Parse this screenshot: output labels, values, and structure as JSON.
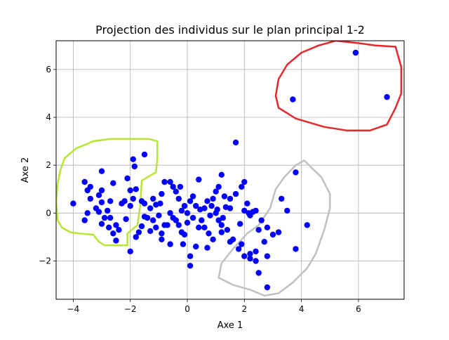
{
  "chart_data": {
    "type": "scatter",
    "title": "Projection des individus sur le plan principal 1-2",
    "xlabel": "Axe 1",
    "ylabel": "Axe 2",
    "xlim": [
      -4.6,
      7.6
    ],
    "ylim": [
      -3.6,
      7.2
    ],
    "xticks": [
      -4,
      -2,
      0,
      2,
      4,
      6
    ],
    "yticks": [
      -2,
      0,
      2,
      4,
      6
    ],
    "grid": true,
    "colors": {
      "points": "#0000ff",
      "grid": "#b0b0b0",
      "red_outline": "#e8262e",
      "green_outline": "#b5e632",
      "gray_outline": "#c0c0c0"
    },
    "series": [
      {
        "points": [
          [
            5.9,
            6.7
          ],
          [
            7.0,
            4.85
          ],
          [
            3.7,
            4.75
          ],
          [
            1.7,
            2.95
          ],
          [
            3.8,
            1.7
          ],
          [
            -1.5,
            2.45
          ],
          [
            -1.9,
            2.25
          ],
          [
            -1.85,
            1.95
          ],
          [
            -3.0,
            1.75
          ],
          [
            -2.1,
            1.45
          ],
          [
            -3.6,
            1.3
          ],
          [
            -3.4,
            1.1
          ],
          [
            -3.5,
            0.95
          ],
          [
            -3.0,
            0.95
          ],
          [
            -3.1,
            0.75
          ],
          [
            -2.6,
            1.25
          ],
          [
            -2.0,
            0.95
          ],
          [
            -1.8,
            1.0
          ],
          [
            -2.2,
            0.5
          ],
          [
            -2.3,
            0.4
          ],
          [
            -2.0,
            0.3
          ],
          [
            -2.7,
            0.5
          ],
          [
            -3.0,
            0.45
          ],
          [
            -3.4,
            0.6
          ],
          [
            -3.2,
            0.2
          ],
          [
            -4.0,
            0.4
          ],
          [
            -3.5,
            0.0
          ],
          [
            -3.6,
            -0.3
          ],
          [
            -3.1,
            0.05
          ],
          [
            -2.8,
            0.1
          ],
          [
            -2.9,
            -0.2
          ],
          [
            -3.0,
            -0.45
          ],
          [
            -2.5,
            -0.5
          ],
          [
            -2.4,
            -0.7
          ],
          [
            -2.6,
            -0.85
          ],
          [
            -2.5,
            -1.15
          ],
          [
            -2.7,
            -0.2
          ],
          [
            -1.9,
            0.6
          ],
          [
            -1.6,
            0.5
          ],
          [
            -1.5,
            0.4
          ],
          [
            -1.3,
            0.2
          ],
          [
            -1.2,
            0.6
          ],
          [
            -1.1,
            0.35
          ],
          [
            -0.9,
            0.8
          ],
          [
            -0.8,
            1.3
          ],
          [
            -0.6,
            1.3
          ],
          [
            -0.5,
            1.1
          ],
          [
            -0.4,
            0.9
          ],
          [
            -0.3,
            0.6
          ],
          [
            -0.1,
            0.3
          ],
          [
            0.2,
            0.7
          ],
          [
            0.4,
            1.4
          ],
          [
            0.7,
            0.5
          ],
          [
            0.9,
            0.6
          ],
          [
            1.0,
            0.9
          ],
          [
            1.1,
            1.1
          ],
          [
            1.3,
            0.7
          ],
          [
            1.5,
            0.6
          ],
          [
            1.7,
            0.8
          ],
          [
            1.9,
            1.1
          ],
          [
            2.0,
            1.3
          ],
          [
            1.2,
            1.6
          ],
          [
            0.1,
            0.5
          ],
          [
            0.0,
            0.0
          ],
          [
            0.2,
            -0.2
          ],
          [
            0.4,
            -0.6
          ],
          [
            0.6,
            -0.6
          ],
          [
            0.8,
            -0.1
          ],
          [
            1.0,
            0.0
          ],
          [
            1.2,
            -0.5
          ],
          [
            1.4,
            -0.7
          ],
          [
            1.6,
            -1.1
          ],
          [
            2.0,
            0.1
          ],
          [
            2.2,
            -0.1
          ],
          [
            2.1,
            0.4
          ],
          [
            2.4,
            0.1
          ],
          [
            2.6,
            -0.3
          ],
          [
            2.5,
            -0.7
          ],
          [
            2.8,
            -0.6
          ],
          [
            2.7,
            -1.2
          ],
          [
            3.0,
            -0.9
          ],
          [
            3.2,
            -0.8
          ],
          [
            3.5,
            0.1
          ],
          [
            3.3,
            0.6
          ],
          [
            4.2,
            -0.5
          ],
          [
            3.8,
            -1.5
          ],
          [
            1.8,
            -1.5
          ],
          [
            2.0,
            -1.8
          ],
          [
            2.2,
            -1.9
          ],
          [
            2.4,
            -2.0
          ],
          [
            2.5,
            -2.5
          ],
          [
            2.8,
            -3.1
          ],
          [
            2.8,
            -1.8
          ],
          [
            2.4,
            -1.6
          ],
          [
            2.2,
            -1.7
          ],
          [
            1.9,
            -1.3
          ],
          [
            1.5,
            -1.2
          ],
          [
            1.2,
            -0.8
          ],
          [
            0.9,
            -1.1
          ],
          [
            0.7,
            -1.45
          ],
          [
            0.3,
            -1.4
          ],
          [
            0.1,
            -1.8
          ],
          [
            0.1,
            -2.2
          ],
          [
            -0.1,
            -0.9
          ],
          [
            -0.3,
            -0.5
          ],
          [
            -0.5,
            -0.2
          ],
          [
            -0.8,
            -0.5
          ],
          [
            -0.9,
            -0.85
          ],
          [
            -1.1,
            -0.6
          ],
          [
            -1.2,
            -0.3
          ],
          [
            -1.4,
            -0.2
          ],
          [
            -1.6,
            -0.55
          ],
          [
            -1.7,
            -0.8
          ],
          [
            -1.8,
            -1.0
          ],
          [
            -2.0,
            -1.6
          ],
          [
            -1.3,
            -0.75
          ],
          [
            -0.9,
            -1.1
          ],
          [
            -0.6,
            -1.3
          ],
          [
            -0.2,
            -0.8
          ],
          [
            0.0,
            -0.4
          ],
          [
            0.5,
            -0.3
          ],
          [
            0.6,
            0.2
          ],
          [
            0.3,
            0.3
          ],
          [
            -0.2,
            0.1
          ],
          [
            -0.6,
            0.0
          ],
          [
            -1.0,
            -0.1
          ],
          [
            -0.4,
            -0.3
          ],
          [
            -0.7,
            -0.5
          ],
          [
            -1.5,
            -0.15
          ],
          [
            -0.25,
            1.1
          ],
          [
            1.5,
            0.2
          ],
          [
            1.1,
            -0.3
          ],
          [
            0.85,
            0.3
          ],
          [
            1.85,
            -0.45
          ],
          [
            2.3,
            0.05
          ],
          [
            0.45,
            0.15
          ],
          [
            1.25,
            -0.2
          ],
          [
            -2.15,
            -0.25
          ],
          [
            -2.75,
            -0.6
          ],
          [
            -0.95,
            0.4
          ],
          [
            0.75,
            -0.85
          ],
          [
            -0.15,
            -1.3
          ],
          [
            1.35,
            0.25
          ],
          [
            2.15,
            0.0
          ],
          [
            1.05,
            0.15
          ]
        ]
      }
    ],
    "annotations": [
      {
        "kind": "outline",
        "color": "red",
        "points": [
          [
            5.2,
            7.2
          ],
          [
            6.0,
            7.1
          ],
          [
            6.6,
            7.0
          ],
          [
            7.3,
            6.95
          ],
          [
            7.5,
            6.1
          ],
          [
            7.5,
            5.0
          ],
          [
            7.3,
            4.4
          ],
          [
            7.0,
            3.7
          ],
          [
            6.4,
            3.45
          ],
          [
            5.6,
            3.45
          ],
          [
            4.8,
            3.6
          ],
          [
            3.8,
            3.95
          ],
          [
            3.2,
            4.4
          ],
          [
            3.1,
            4.9
          ],
          [
            3.2,
            5.6
          ],
          [
            3.5,
            6.2
          ],
          [
            4.0,
            6.7
          ],
          [
            4.6,
            7.0
          ],
          [
            5.2,
            7.2
          ]
        ]
      },
      {
        "kind": "outline",
        "color": "green",
        "points": [
          [
            -2.1,
            3.1
          ],
          [
            -1.35,
            3.1
          ],
          [
            -1.05,
            3.0
          ],
          [
            -1.05,
            2.3
          ],
          [
            -1.1,
            1.7
          ],
          [
            -1.4,
            1.5
          ],
          [
            -1.6,
            1.35
          ],
          [
            -1.65,
            0.3
          ],
          [
            -1.75,
            -0.5
          ],
          [
            -2.1,
            -0.85
          ],
          [
            -2.1,
            -1.35
          ],
          [
            -2.4,
            -1.35
          ],
          [
            -2.9,
            -1.35
          ],
          [
            -3.1,
            -1.2
          ],
          [
            -3.3,
            -0.9
          ],
          [
            -3.8,
            -0.85
          ],
          [
            -4.1,
            -0.8
          ],
          [
            -4.4,
            -0.6
          ],
          [
            -4.55,
            -0.3
          ],
          [
            -4.6,
            0.5
          ],
          [
            -4.55,
            1.2
          ],
          [
            -4.45,
            1.8
          ],
          [
            -4.3,
            2.3
          ],
          [
            -3.9,
            2.7
          ],
          [
            -3.3,
            3.0
          ],
          [
            -2.7,
            3.1
          ],
          [
            -2.1,
            3.1
          ]
        ]
      },
      {
        "kind": "outline",
        "color": "gray",
        "points": [
          [
            4.1,
            2.2
          ],
          [
            4.35,
            1.9
          ],
          [
            4.7,
            1.5
          ],
          [
            5.0,
            0.8
          ],
          [
            5.0,
            0.2
          ],
          [
            4.8,
            -0.7
          ],
          [
            4.5,
            -1.7
          ],
          [
            4.2,
            -2.3
          ],
          [
            3.7,
            -2.9
          ],
          [
            3.2,
            -3.35
          ],
          [
            2.7,
            -3.45
          ],
          [
            2.2,
            -3.2
          ],
          [
            1.6,
            -3.0
          ],
          [
            1.1,
            -2.7
          ],
          [
            1.2,
            -2.1
          ],
          [
            1.6,
            -1.5
          ],
          [
            2.1,
            -0.85
          ],
          [
            2.5,
            -0.5
          ],
          [
            2.9,
            0.2
          ],
          [
            3.1,
            1.0
          ],
          [
            3.4,
            1.5
          ],
          [
            3.8,
            2.0
          ],
          [
            4.1,
            2.2
          ]
        ]
      }
    ]
  }
}
